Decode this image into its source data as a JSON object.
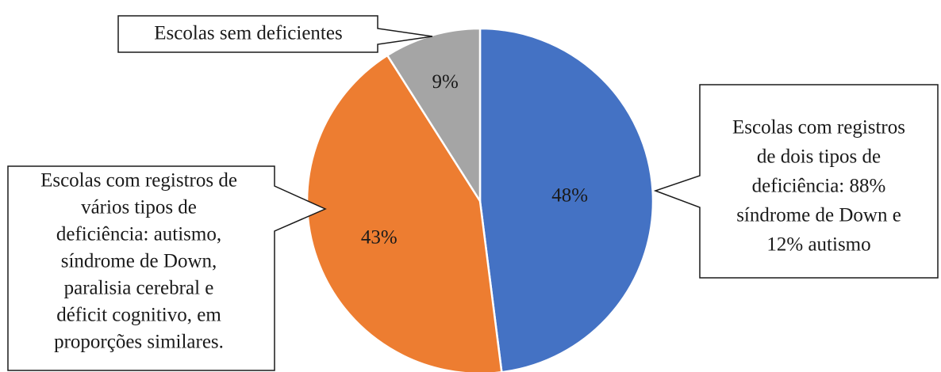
{
  "chart_data": {
    "type": "pie",
    "slices": [
      {
        "label": "Escolas com registros de dois tipos de deficiência: 88% síndrome de Down e 12% autismo",
        "value": 48,
        "value_label": "48%",
        "color": "#4472c4",
        "callout_lines": [
          "Escolas com registros",
          "de dois tipos de",
          "deficiência:  88%",
          "síndrome de Down e",
          "12% autismo"
        ]
      },
      {
        "label": "Escolas com registros de vários tipos de deficiência: autismo, síndrome de Down, paralisia cerebral e déficit cognitivo, em proporções similares.",
        "value": 43,
        "value_label": "43%",
        "color": "#ed7d31",
        "callout_lines": [
          "Escolas com registros de",
          "vários tipos de",
          "deficiência:  autismo,",
          "síndrome de Down,",
          "paralisia cerebral e",
          "déficit cognitivo, em",
          "proporções similares."
        ]
      },
      {
        "label": "Escolas sem deficientes",
        "value": 9,
        "value_label": "9%",
        "color": "#a5a5a5",
        "callout_lines": [
          "Escolas sem deficientes"
        ]
      }
    ],
    "start_angle_deg": 0,
    "direction": "clockwise",
    "legend": "none"
  }
}
